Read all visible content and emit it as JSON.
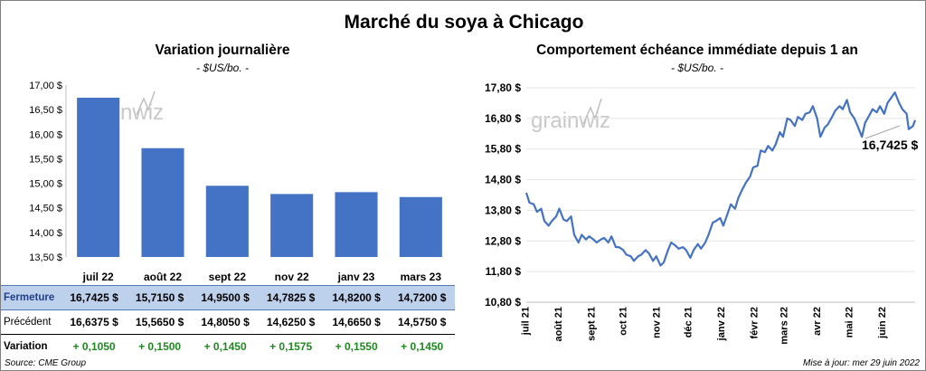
{
  "title": "Marché du soya à Chicago",
  "watermark": "grainwiz",
  "left_chart": {
    "title": "Variation  journalière",
    "units": "- $US/bo. -"
  },
  "right_chart": {
    "title": "Comportement  échéance immédiate depuis 1 an",
    "units": "- $US/bo. -",
    "last_value_label": "16,7425 $"
  },
  "table": {
    "rows": [
      {
        "label": "Fermeture",
        "values": [
          "16,7425  $",
          "15,7150  $",
          "14,9500  $",
          "14,7825  $",
          "14,8200  $",
          "14,7200  $"
        ]
      },
      {
        "label": "Précédent",
        "values": [
          "16,6375  $",
          "15,5650  $",
          "14,8050  $",
          "14,6250  $",
          "14,6650  $",
          "14,5750  $"
        ]
      },
      {
        "label": "Variation",
        "values": [
          "+ 0,1050",
          "+ 0,1500",
          "+ 0,1450",
          "+ 0,1575",
          "+ 0,1550",
          "+ 0,1450"
        ]
      }
    ]
  },
  "footer": {
    "source": "Source: CME Group",
    "updated": "Mise à jour: mer 29 juin 2022"
  },
  "colors": {
    "bar": "#4472c4",
    "line": "#4472c4",
    "table_highlight": "#bdd0ec",
    "positive": "#1e8a1e"
  },
  "chart_data": [
    {
      "type": "bar",
      "categories": [
        "juil 22",
        "août 22",
        "sept 22",
        "nov 22",
        "janv 23",
        "mars 23"
      ],
      "values": [
        16.7425,
        15.715,
        14.95,
        14.7825,
        14.82,
        14.72
      ],
      "ylim": [
        13.5,
        17.0
      ],
      "yticks": [
        "13,50 $",
        "14,00 $",
        "14,50 $",
        "15,00 $",
        "15,50 $",
        "16,00 $",
        "16,50 $",
        "17,00 $"
      ],
      "grid": false
    },
    {
      "type": "line",
      "x_ticks": [
        "juil 21",
        "août 21",
        "sept 21",
        "oct 21",
        "nov 21",
        "déc 21",
        "janv 22",
        "févr 22",
        "mars 22",
        "avr 22",
        "mai 22",
        "juin 22"
      ],
      "x_range": [
        "2021-06-29",
        "2022-06-29"
      ],
      "ylim": [
        10.8,
        17.8
      ],
      "yticks": [
        "10,80 $",
        "11,80 $",
        "12,80 $",
        "13,80 $",
        "14,80 $",
        "15,80 $",
        "16,80 $",
        "17,80 $"
      ],
      "series": [
        {
          "points": [
            [
              "2021-06-29",
              14.37
            ],
            [
              "2021-07-02",
              14.05
            ],
            [
              "2021-07-06",
              14.0
            ],
            [
              "2021-07-09",
              13.75
            ],
            [
              "2021-07-13",
              13.85
            ],
            [
              "2021-07-16",
              13.45
            ],
            [
              "2021-07-20",
              13.3
            ],
            [
              "2021-07-23",
              13.45
            ],
            [
              "2021-07-27",
              13.6
            ],
            [
              "2021-07-30",
              13.85
            ],
            [
              "2021-08-03",
              13.5
            ],
            [
              "2021-08-06",
              13.45
            ],
            [
              "2021-08-10",
              13.6
            ],
            [
              "2021-08-13",
              13.0
            ],
            [
              "2021-08-17",
              12.75
            ],
            [
              "2021-08-20",
              13.0
            ],
            [
              "2021-08-24",
              12.85
            ],
            [
              "2021-08-27",
              12.95
            ],
            [
              "2021-08-31",
              12.85
            ],
            [
              "2021-09-03",
              12.75
            ],
            [
              "2021-09-07",
              12.85
            ],
            [
              "2021-09-10",
              12.9
            ],
            [
              "2021-09-14",
              12.75
            ],
            [
              "2021-09-17",
              12.95
            ],
            [
              "2021-09-21",
              12.6
            ],
            [
              "2021-09-24",
              12.6
            ],
            [
              "2021-09-28",
              12.5
            ],
            [
              "2021-10-01",
              12.35
            ],
            [
              "2021-10-05",
              12.3
            ],
            [
              "2021-10-08",
              12.15
            ],
            [
              "2021-10-12",
              12.3
            ],
            [
              "2021-10-15",
              12.35
            ],
            [
              "2021-10-19",
              12.5
            ],
            [
              "2021-10-22",
              12.4
            ],
            [
              "2021-10-26",
              12.15
            ],
            [
              "2021-10-29",
              12.3
            ],
            [
              "2021-11-02",
              12.0
            ],
            [
              "2021-11-05",
              12.1
            ],
            [
              "2021-11-09",
              12.5
            ],
            [
              "2021-11-12",
              12.75
            ],
            [
              "2021-11-16",
              12.65
            ],
            [
              "2021-11-19",
              12.55
            ],
            [
              "2021-11-23",
              12.6
            ],
            [
              "2021-11-26",
              12.5
            ],
            [
              "2021-11-30",
              12.25
            ],
            [
              "2021-12-03",
              12.5
            ],
            [
              "2021-12-07",
              12.7
            ],
            [
              "2021-12-10",
              12.55
            ],
            [
              "2021-12-14",
              12.75
            ],
            [
              "2021-12-17",
              13.0
            ],
            [
              "2021-12-21",
              13.4
            ],
            [
              "2021-12-24",
              13.45
            ],
            [
              "2021-12-28",
              13.55
            ],
            [
              "2021-12-31",
              13.3
            ],
            [
              "2022-01-04",
              13.7
            ],
            [
              "2022-01-07",
              14.0
            ],
            [
              "2022-01-11",
              13.85
            ],
            [
              "2022-01-14",
              14.2
            ],
            [
              "2022-01-18",
              14.5
            ],
            [
              "2022-01-21",
              14.7
            ],
            [
              "2022-01-25",
              14.9
            ],
            [
              "2022-01-28",
              15.2
            ],
            [
              "2022-02-01",
              15.25
            ],
            [
              "2022-02-04",
              15.75
            ],
            [
              "2022-02-08",
              15.7
            ],
            [
              "2022-02-11",
              15.9
            ],
            [
              "2022-02-15",
              15.75
            ],
            [
              "2022-02-18",
              15.95
            ],
            [
              "2022-02-22",
              16.35
            ],
            [
              "2022-02-25",
              16.2
            ],
            [
              "2022-03-01",
              16.8
            ],
            [
              "2022-03-04",
              16.75
            ],
            [
              "2022-03-08",
              16.55
            ],
            [
              "2022-03-11",
              16.85
            ],
            [
              "2022-03-15",
              16.75
            ],
            [
              "2022-03-18",
              16.95
            ],
            [
              "2022-03-22",
              17.0
            ],
            [
              "2022-03-25",
              17.2
            ],
            [
              "2022-03-29",
              16.8
            ],
            [
              "2022-04-01",
              16.2
            ],
            [
              "2022-04-05",
              16.5
            ],
            [
              "2022-04-08",
              16.6
            ],
            [
              "2022-04-12",
              16.85
            ],
            [
              "2022-04-15",
              17.05
            ],
            [
              "2022-04-19",
              17.2
            ],
            [
              "2022-04-22",
              17.1
            ],
            [
              "2022-04-26",
              17.4
            ],
            [
              "2022-04-29",
              17.0
            ],
            [
              "2022-05-03",
              16.8
            ],
            [
              "2022-05-06",
              16.55
            ],
            [
              "2022-05-10",
              16.2
            ],
            [
              "2022-05-13",
              16.65
            ],
            [
              "2022-05-17",
              16.9
            ],
            [
              "2022-05-20",
              17.1
            ],
            [
              "2022-05-24",
              17.0
            ],
            [
              "2022-05-27",
              17.2
            ],
            [
              "2022-05-31",
              16.95
            ],
            [
              "2022-06-03",
              17.3
            ],
            [
              "2022-06-07",
              17.5
            ],
            [
              "2022-06-10",
              17.65
            ],
            [
              "2022-06-14",
              17.3
            ],
            [
              "2022-06-17",
              17.1
            ],
            [
              "2022-06-21",
              16.95
            ],
            [
              "2022-06-23",
              16.45
            ],
            [
              "2022-06-27",
              16.55
            ],
            [
              "2022-06-29",
              16.7425
            ]
          ]
        }
      ]
    }
  ]
}
